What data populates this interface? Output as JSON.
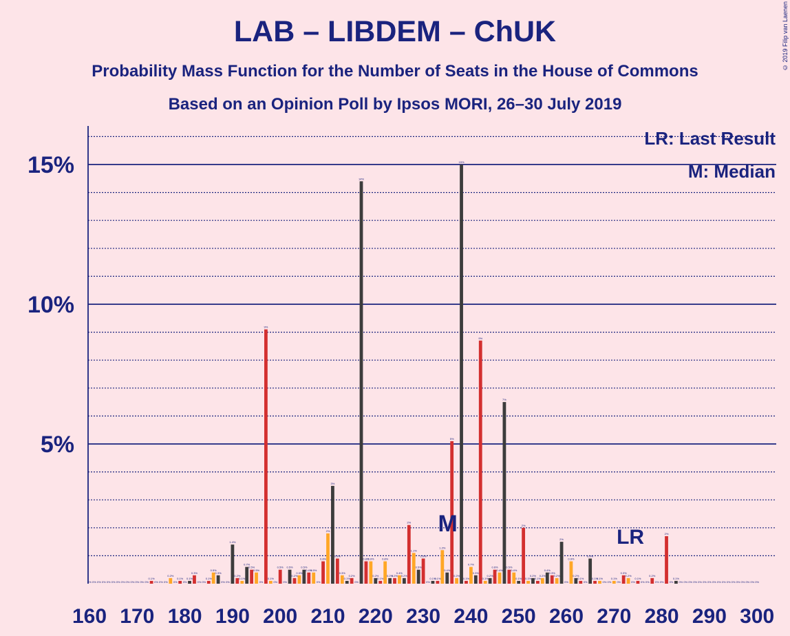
{
  "title": "LAB – LIBDEM – ChUK",
  "subtitle": "Probability Mass Function for the Number of Seats in the House of Commons",
  "subtitle2": "Based on an Opinion Poll by Ipsos MORI, 26–30 July 2019",
  "copyright": "© 2019 Filip van Laenen",
  "legend": {
    "last_result": "LR: Last Result",
    "median": "M: Median"
  },
  "markers": {
    "median_label": "M",
    "median_seat": 236,
    "last_result_label": "LR",
    "last_result_seat": 273
  },
  "colors": {
    "background": "#fde4e8",
    "axis": "#1a237e",
    "bar_dark": "#3c3c3c",
    "bar_dark_alt": "#424242",
    "bar_red": "#d32f2f",
    "bar_orange": "#ffa726"
  },
  "chart_data": {
    "type": "bar",
    "xlabel": "",
    "ylabel": "",
    "xlim": [
      160,
      300
    ],
    "ylim": [
      0,
      16.5
    ],
    "x_ticks": [
      160,
      170,
      180,
      190,
      200,
      210,
      220,
      230,
      240,
      250,
      260,
      270,
      280,
      290,
      300
    ],
    "y_ticks": [
      {
        "value": 5,
        "label": "5%"
      },
      {
        "value": 10,
        "label": "10%"
      },
      {
        "value": 15,
        "label": "15%"
      }
    ],
    "grid": "dotted at every 1%, solid at 5%, 10%, 15%",
    "series_colors_by_seat_mod3": [
      "#ffa726",
      "#3c3c3c",
      "#d32f2f"
    ],
    "bars": [
      {
        "seat": 173,
        "value": 0.1,
        "label": "0.1%"
      },
      {
        "seat": 177,
        "value": 0.2,
        "label": "0.2%"
      },
      {
        "seat": 179,
        "value": 0.1,
        "label": "0.1%"
      },
      {
        "seat": 181,
        "value": 0.1,
        "label": "0.1%"
      },
      {
        "seat": 182,
        "value": 0.3,
        "label": "0.3%"
      },
      {
        "seat": 185,
        "value": 0.1,
        "label": "0.1%"
      },
      {
        "seat": 186,
        "value": 0.4,
        "label": "0.5%"
      },
      {
        "seat": 187,
        "value": 0.3,
        "label": "0.3%"
      },
      {
        "seat": 190,
        "value": 1.4,
        "label": "1.4%"
      },
      {
        "seat": 191,
        "value": 0.2,
        "label": "0.2%"
      },
      {
        "seat": 192,
        "value": 0.1,
        "label": "0.1%"
      },
      {
        "seat": 193,
        "value": 0.6,
        "label": "0.7%"
      },
      {
        "seat": 194,
        "value": 0.5,
        "label": "0.5%"
      },
      {
        "seat": 195,
        "value": 0.4,
        "label": "0.5%"
      },
      {
        "seat": 197,
        "value": 9.1,
        "label": "9%"
      },
      {
        "seat": 198,
        "value": 0.1,
        "label": "0.1%"
      },
      {
        "seat": 200,
        "value": 0.5,
        "label": "0.5%"
      },
      {
        "seat": 202,
        "value": 0.5,
        "label": "0.5%"
      },
      {
        "seat": 203,
        "value": 0.2,
        "label": "0.2%"
      },
      {
        "seat": 204,
        "value": 0.3,
        "label": "0.3%"
      },
      {
        "seat": 205,
        "value": 0.5,
        "label": "0.5%"
      },
      {
        "seat": 206,
        "value": 0.4,
        "label": "0.4%"
      },
      {
        "seat": 207,
        "value": 0.4,
        "label": "0.5%"
      },
      {
        "seat": 209,
        "value": 0.8,
        "label": "0.8%"
      },
      {
        "seat": 210,
        "value": 1.8,
        "label": "2%"
      },
      {
        "seat": 211,
        "value": 3.5,
        "label": "3%"
      },
      {
        "seat": 212,
        "value": 0.9,
        "label": "0.9%"
      },
      {
        "seat": 213,
        "value": 0.3,
        "label": "0.3%"
      },
      {
        "seat": 214,
        "value": 0.1,
        "label": "0.1%"
      },
      {
        "seat": 215,
        "value": 0.2,
        "label": "0.2%"
      },
      {
        "seat": 217,
        "value": 14.4,
        "label": "14%"
      },
      {
        "seat": 218,
        "value": 0.8,
        "label": "0.8%"
      },
      {
        "seat": 219,
        "value": 0.8,
        "label": "0.9%"
      },
      {
        "seat": 220,
        "value": 0.2,
        "label": "0.2%"
      },
      {
        "seat": 221,
        "value": 0.1,
        "label": "0.1%"
      },
      {
        "seat": 222,
        "value": 0.8,
        "label": "0.8%"
      },
      {
        "seat": 223,
        "value": 0.2,
        "label": "0.2%"
      },
      {
        "seat": 224,
        "value": 0.2,
        "label": "0.2%"
      },
      {
        "seat": 225,
        "value": 0.3,
        "label": "0.4%"
      },
      {
        "seat": 226,
        "value": 0.2,
        "label": "0.2%"
      },
      {
        "seat": 227,
        "value": 2.1,
        "label": "2%"
      },
      {
        "seat": 228,
        "value": 1.1,
        "label": "1.1%"
      },
      {
        "seat": 229,
        "value": 0.5,
        "label": "0.5%"
      },
      {
        "seat": 230,
        "value": 0.9,
        "label": "1.0%"
      },
      {
        "seat": 232,
        "value": 0.1,
        "label": "0.1%"
      },
      {
        "seat": 233,
        "value": 0.1,
        "label": "0.1%"
      },
      {
        "seat": 234,
        "value": 1.2,
        "label": "1.2%"
      },
      {
        "seat": 235,
        "value": 0.4,
        "label": "0.4%"
      },
      {
        "seat": 236,
        "value": 5.1,
        "label": "5%"
      },
      {
        "seat": 237,
        "value": 0.2,
        "label": "0.2%"
      },
      {
        "seat": 238,
        "value": 15.0,
        "label": "15%"
      },
      {
        "seat": 239,
        "value": 0.1,
        "label": "0.1%"
      },
      {
        "seat": 240,
        "value": 0.6,
        "label": "0.7%"
      },
      {
        "seat": 241,
        "value": 0.3,
        "label": "0.3%"
      },
      {
        "seat": 242,
        "value": 8.7,
        "label": "9%"
      },
      {
        "seat": 243,
        "value": 0.1,
        "label": "0.1%"
      },
      {
        "seat": 244,
        "value": 0.2,
        "label": "0.2%"
      },
      {
        "seat": 245,
        "value": 0.5,
        "label": "0.6%"
      },
      {
        "seat": 246,
        "value": 0.4,
        "label": "0.4%"
      },
      {
        "seat": 247,
        "value": 6.5,
        "label": "7%"
      },
      {
        "seat": 248,
        "value": 0.5,
        "label": "0.5%"
      },
      {
        "seat": 249,
        "value": 0.4,
        "label": "0.4%"
      },
      {
        "seat": 250,
        "value": 0.1,
        "label": "0.1%"
      },
      {
        "seat": 251,
        "value": 2.0,
        "label": "2%"
      },
      {
        "seat": 252,
        "value": 0.1,
        "label": "0.1%"
      },
      {
        "seat": 253,
        "value": 0.2,
        "label": "0.2%"
      },
      {
        "seat": 254,
        "value": 0.1,
        "label": "0.1%"
      },
      {
        "seat": 255,
        "value": 0.2,
        "label": "0.2%"
      },
      {
        "seat": 256,
        "value": 0.4,
        "label": "0.4%"
      },
      {
        "seat": 257,
        "value": 0.3,
        "label": "0.3%"
      },
      {
        "seat": 258,
        "value": 0.2,
        "label": "0.2%"
      },
      {
        "seat": 259,
        "value": 1.5,
        "label": "2%"
      },
      {
        "seat": 261,
        "value": 0.8,
        "label": "0.9%"
      },
      {
        "seat": 262,
        "value": 0.2,
        "label": "0.2%"
      },
      {
        "seat": 263,
        "value": 0.1,
        "label": "0.1%"
      },
      {
        "seat": 265,
        "value": 0.9,
        "label": "0.9%"
      },
      {
        "seat": 266,
        "value": 0.1,
        "label": "0.1%"
      },
      {
        "seat": 267,
        "value": 0.1,
        "label": "0.1%"
      },
      {
        "seat": 270,
        "value": 0.1,
        "label": "0.1%"
      },
      {
        "seat": 272,
        "value": 0.3,
        "label": "0.3%"
      },
      {
        "seat": 273,
        "value": 0.2,
        "label": "0.2%"
      },
      {
        "seat": 275,
        "value": 0.1,
        "label": "0.1%"
      },
      {
        "seat": 278,
        "value": 0.2,
        "label": "0.2%"
      },
      {
        "seat": 281,
        "value": 1.7,
        "label": "2%"
      },
      {
        "seat": 283,
        "value": 0.1,
        "label": "0.1%"
      }
    ]
  }
}
